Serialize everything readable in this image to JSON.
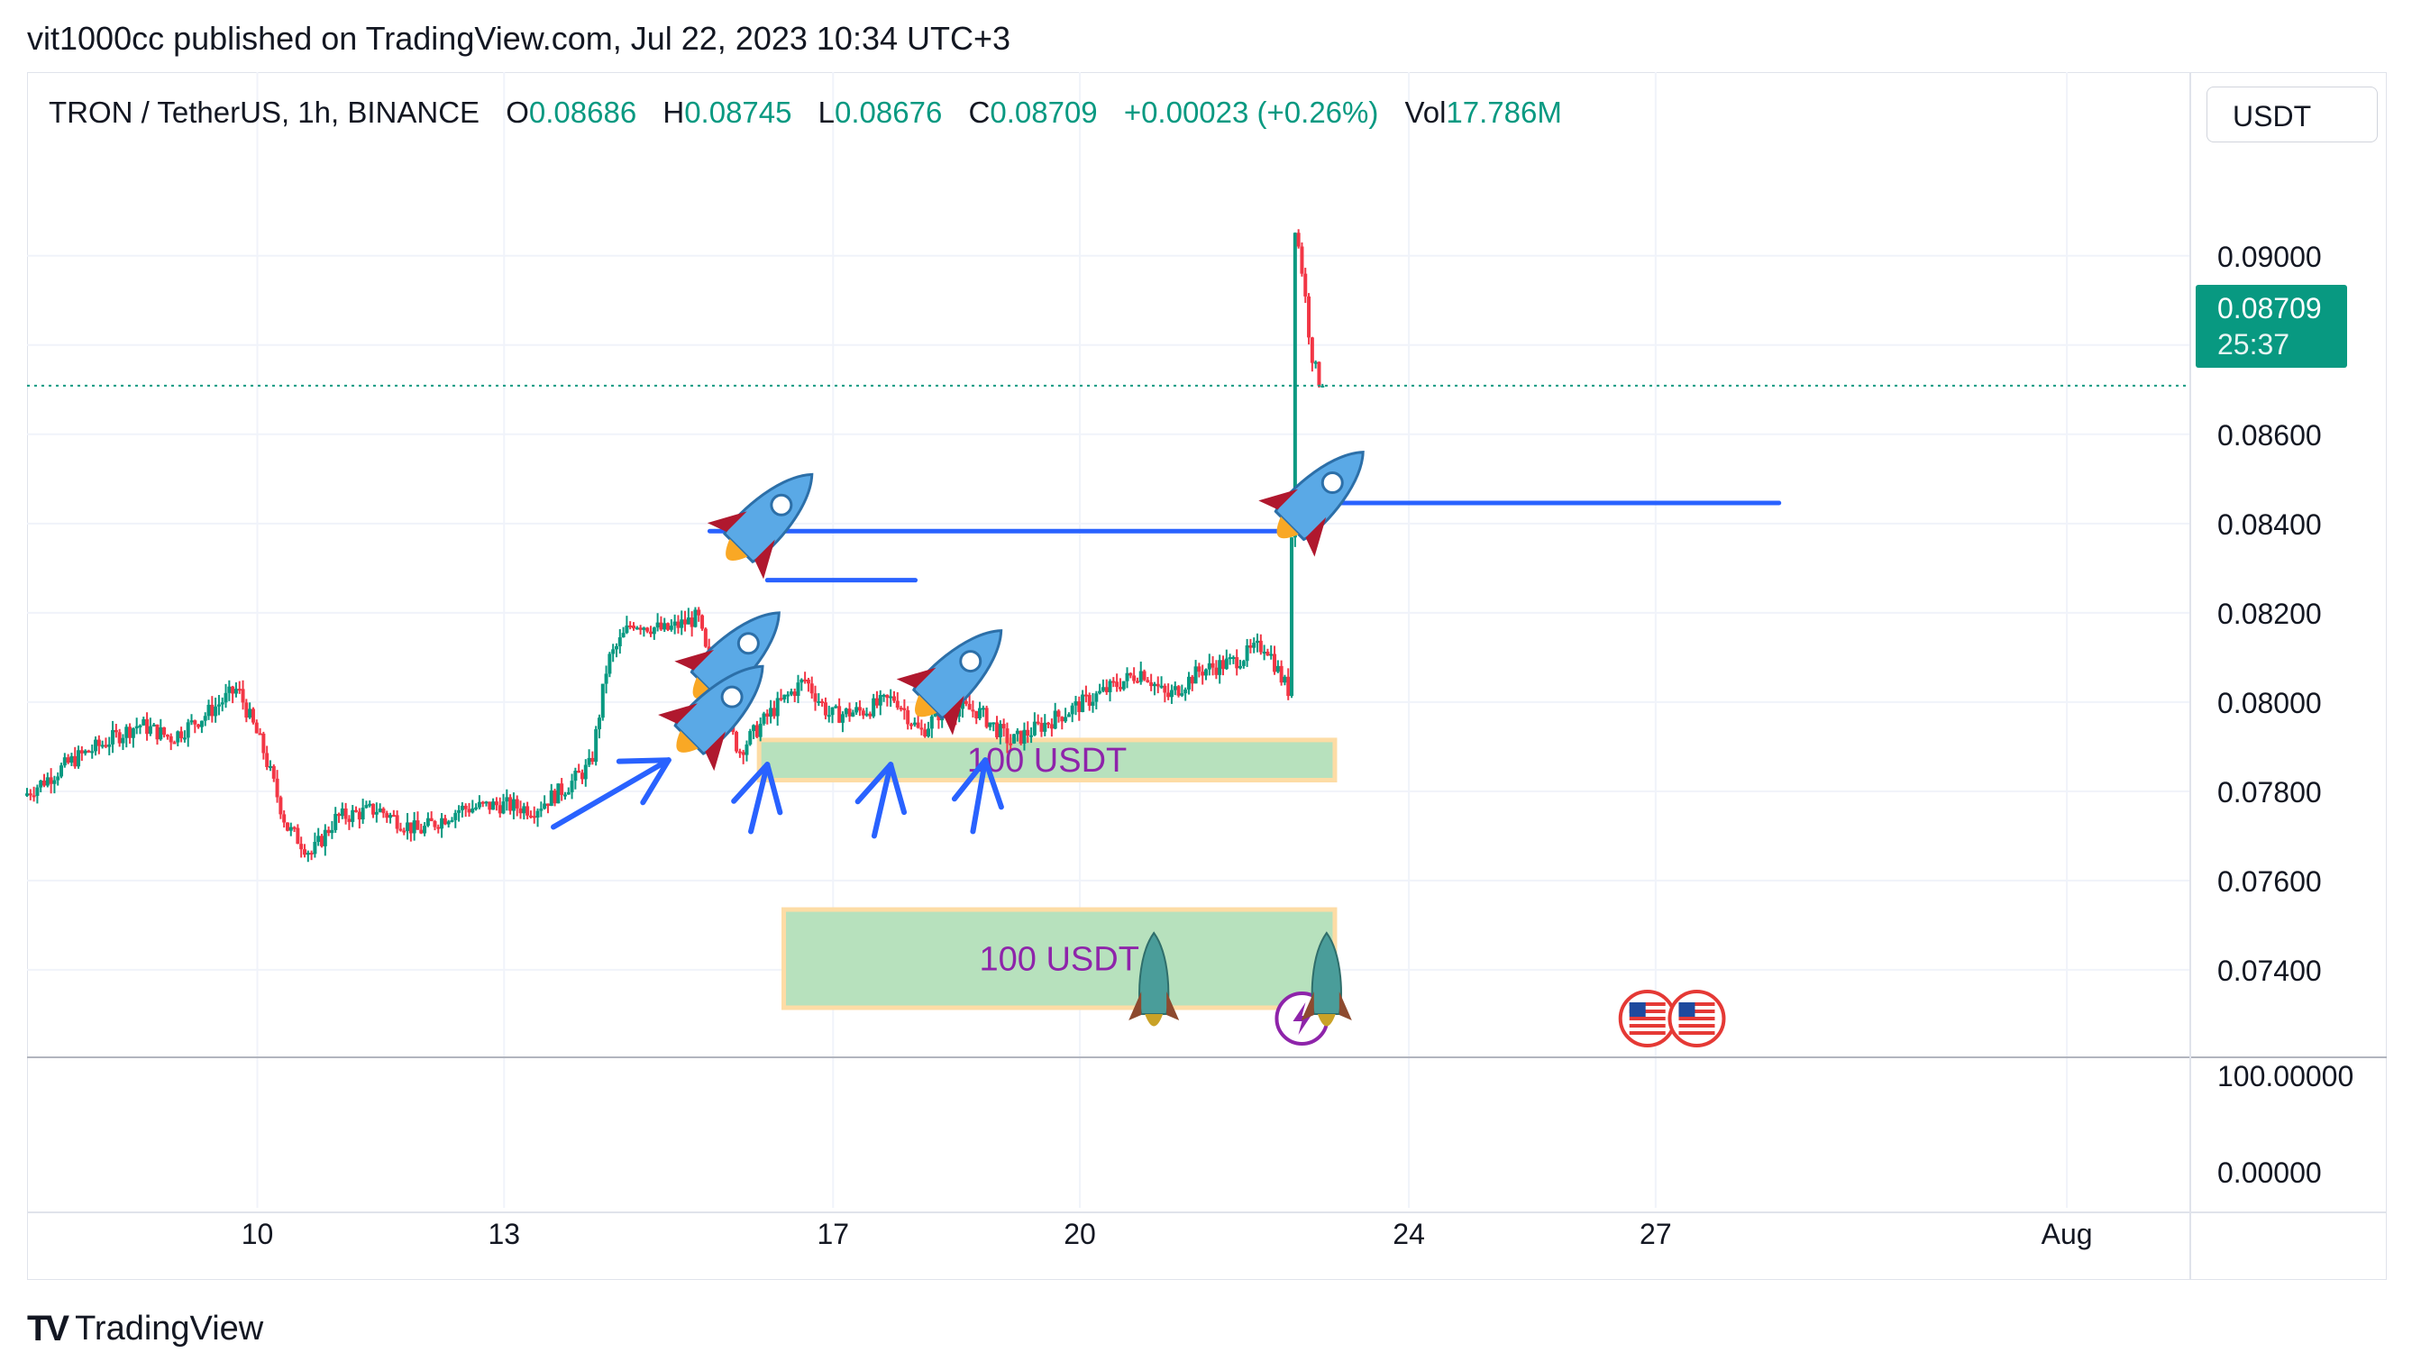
{
  "publish_line": "vit1000cc published on TradingView.com, Jul 22, 2023 10:34 UTC+3",
  "legend": {
    "symbol": "TRON / TetherUS, 1h, BINANCE",
    "open_label": "O",
    "open": "0.08686",
    "high_label": "H",
    "high": "0.08745",
    "low_label": "L",
    "low": "0.08676",
    "close_label": "C",
    "close": "0.08709",
    "change": "+0.00023 (+0.26%)",
    "vol_label": "Vol",
    "vol": "17.786M"
  },
  "currency_button": "USDT",
  "price_badge": {
    "price": "0.08709",
    "countdown": "25:37"
  },
  "brand": "TradingView",
  "colors": {
    "up": "#089981",
    "down": "#f23645",
    "annotation": "#2962ff",
    "zone_fill": "#b7e1bd",
    "zone_border": "#fddca5",
    "zone_text": "#8e24aa",
    "grid": "#f0f3fa"
  },
  "chart_data": {
    "type": "candlestick",
    "title": "TRON / TetherUS, 1h, BINANCE",
    "ylim": [
      0.0722,
      0.0925
    ],
    "y_ticks": [
      "0.09000",
      "0.08800",
      "0.08600",
      "0.08400",
      "0.08200",
      "0.08000",
      "0.07800",
      "0.07600",
      "0.07400"
    ],
    "x_ticks": [
      "10",
      "13",
      "17",
      "20",
      "24",
      "27",
      "Aug"
    ],
    "x_tick_days": [
      10,
      13,
      17,
      20,
      24,
      27,
      32
    ],
    "xlim_days": [
      7.2,
      33.5
    ],
    "grid": true,
    "last_price": 0.08709,
    "price_path": [
      {
        "day": 7.2,
        "price": 0.0779
      },
      {
        "day": 7.8,
        "price": 0.0787
      },
      {
        "day": 8.2,
        "price": 0.0791
      },
      {
        "day": 8.6,
        "price": 0.0795
      },
      {
        "day": 9.0,
        "price": 0.0792
      },
      {
        "day": 9.4,
        "price": 0.0797
      },
      {
        "day": 9.8,
        "price": 0.0803
      },
      {
        "day": 10.1,
        "price": 0.079
      },
      {
        "day": 10.4,
        "price": 0.0772
      },
      {
        "day": 10.7,
        "price": 0.0766
      },
      {
        "day": 11.0,
        "price": 0.0774
      },
      {
        "day": 11.5,
        "price": 0.0776
      },
      {
        "day": 12.0,
        "price": 0.0771
      },
      {
        "day": 12.5,
        "price": 0.0776
      },
      {
        "day": 13.0,
        "price": 0.0777
      },
      {
        "day": 13.4,
        "price": 0.0776
      },
      {
        "day": 13.8,
        "price": 0.0781
      },
      {
        "day": 14.1,
        "price": 0.0786
      },
      {
        "day": 14.3,
        "price": 0.0809
      },
      {
        "day": 14.6,
        "price": 0.0818
      },
      {
        "day": 15.0,
        "price": 0.0816
      },
      {
        "day": 15.4,
        "price": 0.0819
      },
      {
        "day": 15.6,
        "price": 0.0802
      },
      {
        "day": 15.9,
        "price": 0.0789
      },
      {
        "day": 16.3,
        "price": 0.0798
      },
      {
        "day": 16.7,
        "price": 0.0805
      },
      {
        "day": 17.0,
        "price": 0.0797
      },
      {
        "day": 17.4,
        "price": 0.0798
      },
      {
        "day": 17.8,
        "price": 0.0801
      },
      {
        "day": 18.1,
        "price": 0.0793
      },
      {
        "day": 18.4,
        "price": 0.0799
      },
      {
        "day": 18.8,
        "price": 0.0798
      },
      {
        "day": 19.2,
        "price": 0.0791
      },
      {
        "day": 19.6,
        "price": 0.0795
      },
      {
        "day": 20.0,
        "price": 0.0799
      },
      {
        "day": 20.4,
        "price": 0.0803
      },
      {
        "day": 20.8,
        "price": 0.0807
      },
      {
        "day": 21.1,
        "price": 0.0801
      },
      {
        "day": 21.5,
        "price": 0.0807
      },
      {
        "day": 21.9,
        "price": 0.0809
      },
      {
        "day": 22.3,
        "price": 0.0813
      },
      {
        "day": 22.5,
        "price": 0.0805
      },
      {
        "day": 22.6,
        "price": 0.0802
      },
      {
        "day": 22.65,
        "price": 0.0908
      },
      {
        "day": 22.75,
        "price": 0.0896
      },
      {
        "day": 22.85,
        "price": 0.0879
      },
      {
        "day": 22.95,
        "price": 0.0871
      }
    ],
    "horizontal_lines": [
      {
        "from_day": 15.5,
        "to_day": 22.5,
        "price": 0.08383
      },
      {
        "from_day": 16.2,
        "to_day": 18.0,
        "price": 0.08273
      },
      {
        "from_day": 22.8,
        "to_day": 28.5,
        "price": 0.08446
      }
    ],
    "zones": [
      {
        "from_day": 16.1,
        "to_day": 23.1,
        "price_high": 0.07915,
        "price_low": 0.07825,
        "label": "100 USDT"
      },
      {
        "from_day": 16.4,
        "to_day": 23.1,
        "price_high": 0.07535,
        "price_low": 0.07315,
        "label": "100 USDT"
      }
    ],
    "arrows_up": [
      {
        "tail_day": 13.6,
        "tail_price": 0.0772,
        "tip_day": 15.0,
        "tip_price": 0.0787
      },
      {
        "tail_day": 16.0,
        "tail_price": 0.0771,
        "tip_day": 16.2,
        "tip_price": 0.0786
      },
      {
        "tail_day": 17.5,
        "tail_price": 0.077,
        "tip_day": 17.7,
        "tip_price": 0.0786
      },
      {
        "tail_day": 18.7,
        "tail_price": 0.0771,
        "tip_day": 18.85,
        "tip_price": 0.0787
      }
    ],
    "rockets": [
      {
        "day": 16.2,
        "price": 0.0841,
        "size": 1.0
      },
      {
        "day": 15.8,
        "price": 0.081,
        "size": 1.0
      },
      {
        "day": 15.6,
        "price": 0.0798,
        "size": 1.0
      },
      {
        "day": 18.5,
        "price": 0.0806,
        "size": 1.0
      },
      {
        "day": 22.9,
        "price": 0.0846,
        "size": 1.0
      }
    ],
    "event_marks": [
      {
        "type": "rocket-small",
        "day": 20.9
      },
      {
        "type": "lightning",
        "day": 22.7
      },
      {
        "type": "rocket-small",
        "day": 23.0
      },
      {
        "type": "us-flag",
        "day": 26.9
      },
      {
        "type": "us-flag",
        "day": 27.5
      }
    ],
    "indicator_pane": {
      "y_ticks": [
        "100.00000",
        "0.00000"
      ]
    }
  }
}
